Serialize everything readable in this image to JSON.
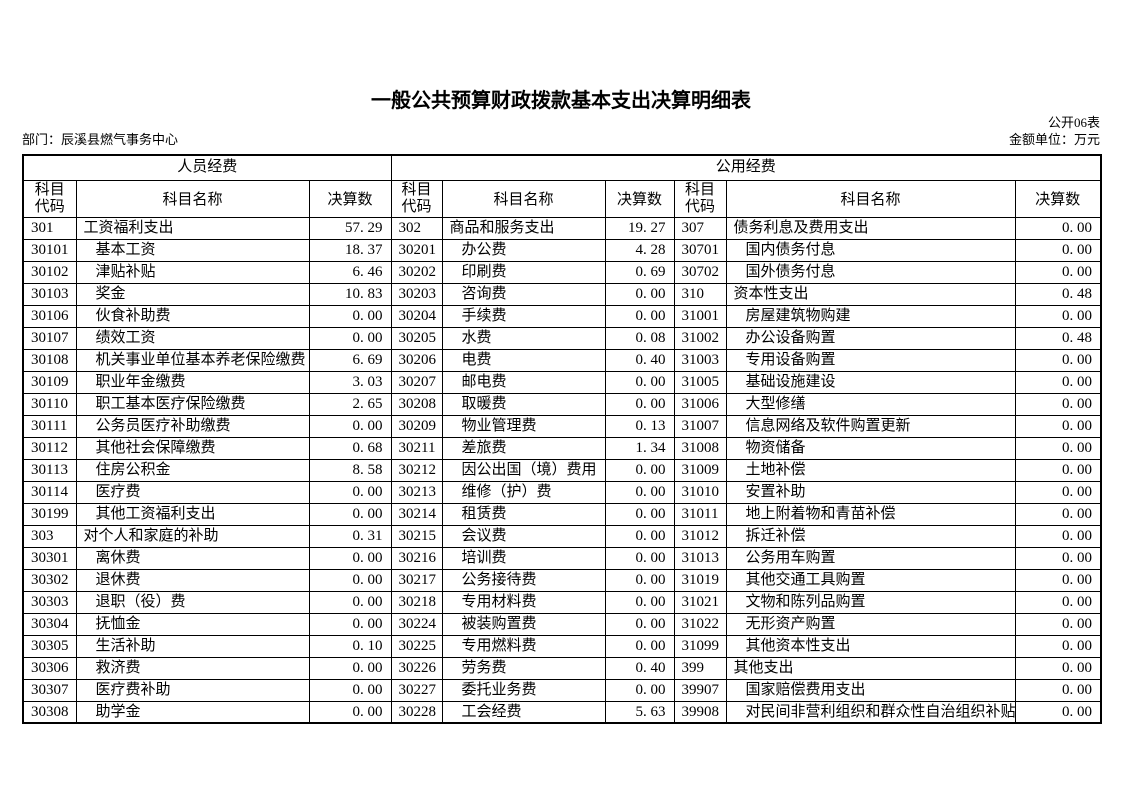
{
  "page": {
    "title": "一般公共预算财政拨款基本支出决算明细表",
    "form_number": "公开06表",
    "department": "部门：辰溪县燃气事务中心",
    "amount_unit": "金额单位：万元"
  },
  "table": {
    "group_headers": [
      "人员经费",
      "公用经费"
    ],
    "column_headers": {
      "code": "科目代码",
      "name": "科目名称",
      "value": "决算数"
    },
    "groups": [
      {
        "rows": [
          {
            "code": "301",
            "name": "工资福利支出",
            "value": "57. 29"
          },
          {
            "code": "30101",
            "name": "基本工资",
            "value": "18. 37"
          },
          {
            "code": "30102",
            "name": "津贴补贴",
            "value": "6. 46"
          },
          {
            "code": "30103",
            "name": "奖金",
            "value": "10. 83"
          },
          {
            "code": "30106",
            "name": "伙食补助费",
            "value": "0. 00"
          },
          {
            "code": "30107",
            "name": "绩效工资",
            "value": "0. 00"
          },
          {
            "code": "30108",
            "name": "机关事业单位基本养老保险缴费",
            "value": "6. 69"
          },
          {
            "code": "30109",
            "name": "职业年金缴费",
            "value": "3. 03"
          },
          {
            "code": "30110",
            "name": "职工基本医疗保险缴费",
            "value": "2. 65"
          },
          {
            "code": "30111",
            "name": "公务员医疗补助缴费",
            "value": "0. 00"
          },
          {
            "code": "30112",
            "name": "其他社会保障缴费",
            "value": "0. 68"
          },
          {
            "code": "30113",
            "name": "住房公积金",
            "value": "8. 58"
          },
          {
            "code": "30114",
            "name": "医疗费",
            "value": "0. 00"
          },
          {
            "code": "30199",
            "name": "其他工资福利支出",
            "value": "0. 00"
          },
          {
            "code": "303",
            "name": "对个人和家庭的补助",
            "value": "0. 31"
          },
          {
            "code": "30301",
            "name": "离休费",
            "value": "0. 00"
          },
          {
            "code": "30302",
            "name": "退休费",
            "value": "0. 00"
          },
          {
            "code": "30303",
            "name": "退职（役）费",
            "value": "0. 00"
          },
          {
            "code": "30304",
            "name": "抚恤金",
            "value": "0. 00"
          },
          {
            "code": "30305",
            "name": "生活补助",
            "value": "0. 10"
          },
          {
            "code": "30306",
            "name": "救济费",
            "value": "0. 00"
          },
          {
            "code": "30307",
            "name": "医疗费补助",
            "value": "0. 00"
          },
          {
            "code": "30308",
            "name": "助学金",
            "value": "0. 00"
          }
        ]
      },
      {
        "rows": [
          {
            "code": "302",
            "name": "商品和服务支出",
            "value": "19. 27"
          },
          {
            "code": "30201",
            "name": "办公费",
            "value": "4. 28"
          },
          {
            "code": "30202",
            "name": "印刷费",
            "value": "0. 69"
          },
          {
            "code": "30203",
            "name": "咨询费",
            "value": "0. 00"
          },
          {
            "code": "30204",
            "name": "手续费",
            "value": "0. 00"
          },
          {
            "code": "30205",
            "name": "水费",
            "value": "0. 08"
          },
          {
            "code": "30206",
            "name": "电费",
            "value": "0. 40"
          },
          {
            "code": "30207",
            "name": "邮电费",
            "value": "0. 00"
          },
          {
            "code": "30208",
            "name": "取暖费",
            "value": "0. 00"
          },
          {
            "code": "30209",
            "name": "物业管理费",
            "value": "0. 13"
          },
          {
            "code": "30211",
            "name": "差旅费",
            "value": "1. 34"
          },
          {
            "code": "30212",
            "name": "因公出国（境）费用",
            "value": "0. 00"
          },
          {
            "code": "30213",
            "name": "维修（护）费",
            "value": "0. 00"
          },
          {
            "code": "30214",
            "name": "租赁费",
            "value": "0. 00"
          },
          {
            "code": "30215",
            "name": "会议费",
            "value": "0. 00"
          },
          {
            "code": "30216",
            "name": "培训费",
            "value": "0. 00"
          },
          {
            "code": "30217",
            "name": "公务接待费",
            "value": "0. 00"
          },
          {
            "code": "30218",
            "name": "专用材料费",
            "value": "0. 00"
          },
          {
            "code": "30224",
            "name": "被装购置费",
            "value": "0. 00"
          },
          {
            "code": "30225",
            "name": "专用燃料费",
            "value": "0. 00"
          },
          {
            "code": "30226",
            "name": "劳务费",
            "value": "0. 40"
          },
          {
            "code": "30227",
            "name": "委托业务费",
            "value": "0. 00"
          },
          {
            "code": "30228",
            "name": "工会经费",
            "value": "5. 63"
          }
        ]
      },
      {
        "rows": [
          {
            "code": "307",
            "name": "债务利息及费用支出",
            "value": "0. 00"
          },
          {
            "code": "30701",
            "name": "国内债务付息",
            "value": "0. 00"
          },
          {
            "code": "30702",
            "name": "国外债务付息",
            "value": "0. 00"
          },
          {
            "code": "310",
            "name": "资本性支出",
            "value": "0. 48"
          },
          {
            "code": "31001",
            "name": "房屋建筑物购建",
            "value": "0. 00"
          },
          {
            "code": "31002",
            "name": "办公设备购置",
            "value": "0. 48"
          },
          {
            "code": "31003",
            "name": "专用设备购置",
            "value": "0. 00"
          },
          {
            "code": "31005",
            "name": "基础设施建设",
            "value": "0. 00"
          },
          {
            "code": "31006",
            "name": "大型修缮",
            "value": "0. 00"
          },
          {
            "code": "31007",
            "name": "信息网络及软件购置更新",
            "value": "0. 00"
          },
          {
            "code": "31008",
            "name": "物资储备",
            "value": "0. 00"
          },
          {
            "code": "31009",
            "name": "土地补偿",
            "value": "0. 00"
          },
          {
            "code": "31010",
            "name": "安置补助",
            "value": "0. 00"
          },
          {
            "code": "31011",
            "name": "地上附着物和青苗补偿",
            "value": "0. 00"
          },
          {
            "code": "31012",
            "name": "拆迁补偿",
            "value": "0. 00"
          },
          {
            "code": "31013",
            "name": "公务用车购置",
            "value": "0. 00"
          },
          {
            "code": "31019",
            "name": "其他交通工具购置",
            "value": "0. 00"
          },
          {
            "code": "31021",
            "name": "文物和陈列品购置",
            "value": "0. 00"
          },
          {
            "code": "31022",
            "name": "无形资产购置",
            "value": "0. 00"
          },
          {
            "code": "31099",
            "name": "其他资本性支出",
            "value": "0. 00"
          },
          {
            "code": "399",
            "name": "其他支出",
            "value": "0. 00"
          },
          {
            "code": "39907",
            "name": "国家赔偿费用支出",
            "value": "0. 00"
          },
          {
            "code": "39908",
            "name": "对民间非营利组织和群众性自治组织补贴",
            "value": "0. 00"
          }
        ]
      }
    ]
  }
}
